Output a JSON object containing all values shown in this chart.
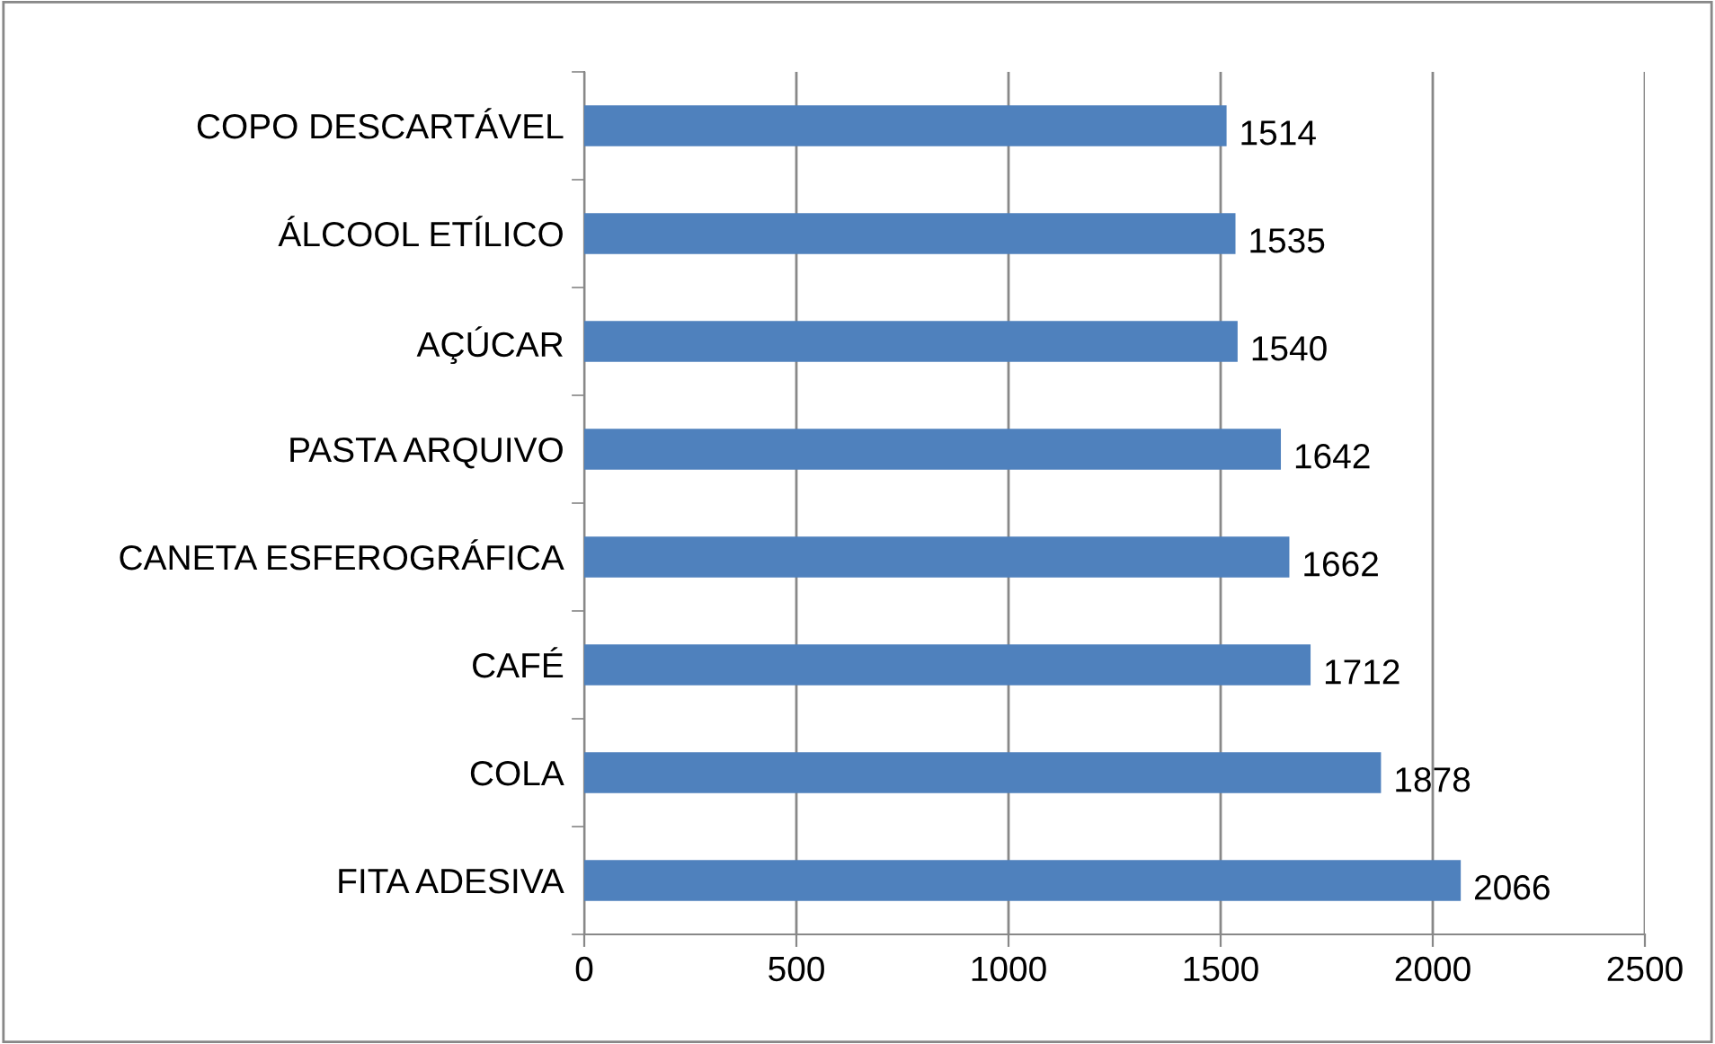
{
  "chart_data": {
    "type": "bar",
    "orientation": "horizontal",
    "categories": [
      "COPO DESCARTÁVEL",
      "ÁLCOOL ETÍLICO",
      "AÇÚCAR",
      "PASTA ARQUIVO",
      "CANETA ESFEROGRÁFICA",
      "CAFÉ",
      "COLA",
      "FITA ADESIVA"
    ],
    "values": [
      1514,
      1535,
      1540,
      1642,
      1662,
      1712,
      1878,
      2066
    ],
    "color": "#4f81bd",
    "xlim": [
      0,
      2500
    ],
    "xticks": [
      0,
      500,
      1000,
      1500,
      2000,
      2500
    ],
    "grid": "x",
    "data_labels": true,
    "legend": false
  }
}
